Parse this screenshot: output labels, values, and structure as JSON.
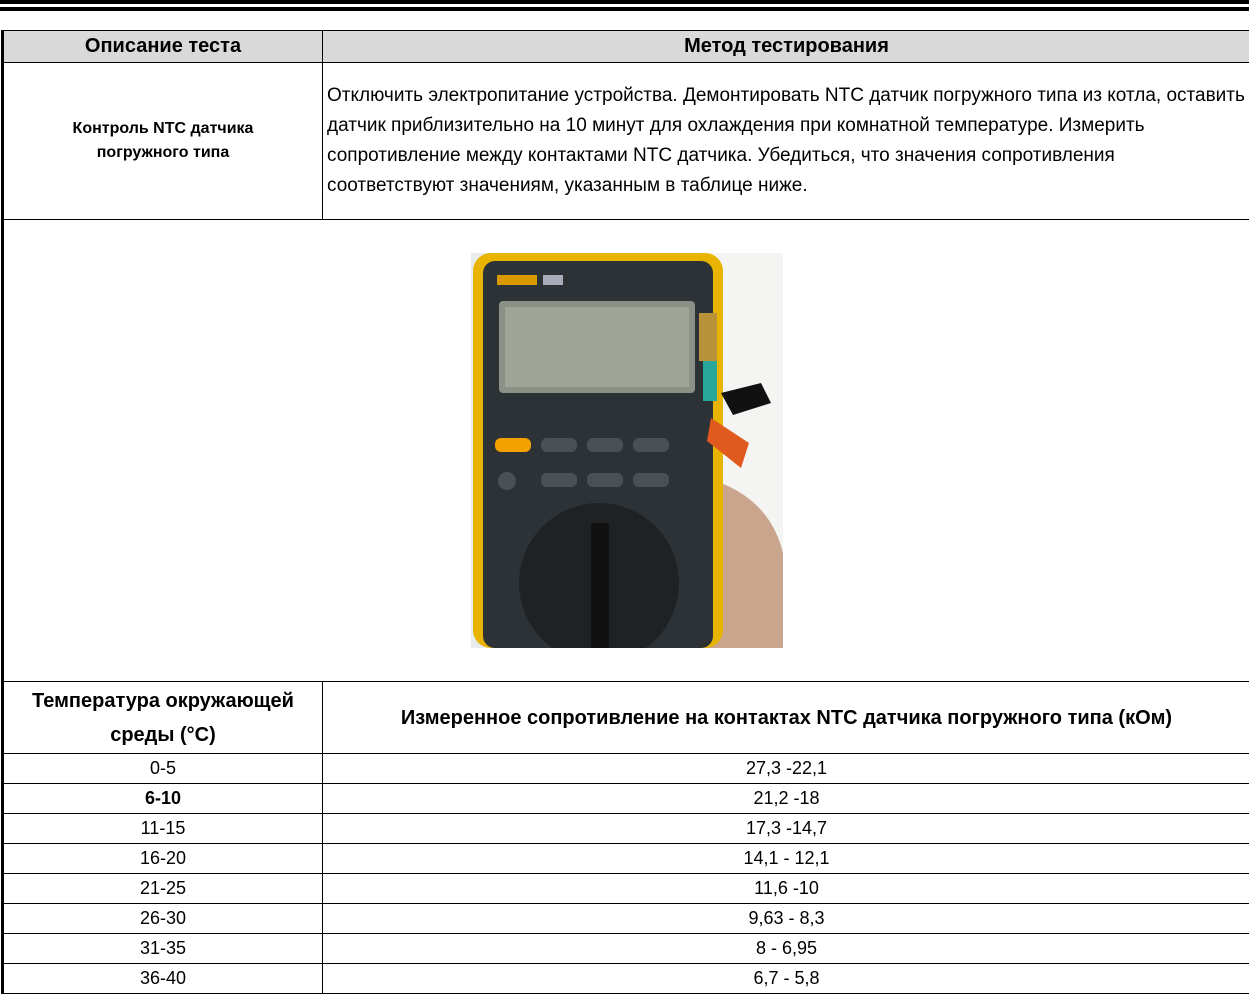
{
  "header": {
    "col1": "Описание теста",
    "col2": "Метод тестирования"
  },
  "test": {
    "name": "Контроль NTC датчика погружного типа",
    "method": "Отключить электропитание устройства.  Демонтировать NTC датчик погружного типа из котла, оставить датчик приблизительно на 10 минут для охлаждения при комнатной температуре.  Измерить сопротивление между контактами NTC датчика.  Убедиться, что значения сопротивления соответствуют значениям, указанным в таблице ниже."
  },
  "table": {
    "columns": [
      "Температура окружающей среды (°C)",
      "Измеренное сопротивление на контактах NTC датчика погружного типа (кОм)"
    ],
    "rows": [
      [
        "0-5",
        "27,3 -22,1"
      ],
      [
        "6-10",
        "21,2 -18"
      ],
      [
        "11-15",
        "17,3 -14,7"
      ],
      [
        "16-20",
        "14,1 - 12,1"
      ],
      [
        "21-25",
        "11,6 -10"
      ],
      [
        "26-30",
        "9,63 - 8,3"
      ],
      [
        "31-35",
        "8 - 6,95"
      ],
      [
        "36-40",
        "6,7 - 5,8"
      ]
    ]
  }
}
